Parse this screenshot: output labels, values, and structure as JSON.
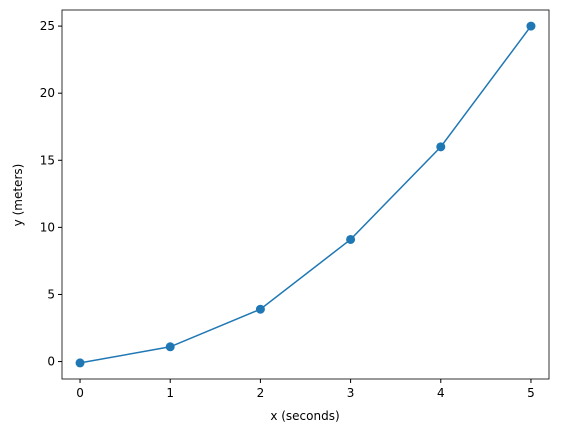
{
  "chart_data": {
    "type": "line",
    "x_label": "x (seconds)",
    "y_label": "y (meters)",
    "x": [
      0,
      1,
      2,
      3,
      4,
      5
    ],
    "series": [
      {
        "color": "#1f77b4",
        "values": [
          -0.1,
          1.1,
          3.9,
          9.1,
          16.0,
          25.0
        ]
      }
    ],
    "xlim": [
      -0.2,
      5.2
    ],
    "xticks": [
      0,
      1,
      2,
      3,
      4,
      5
    ],
    "ylim": [
      -1.3,
      26.2
    ],
    "yticks": [
      0,
      5,
      10,
      15,
      20,
      25
    ],
    "markers": true,
    "grid": false
  }
}
